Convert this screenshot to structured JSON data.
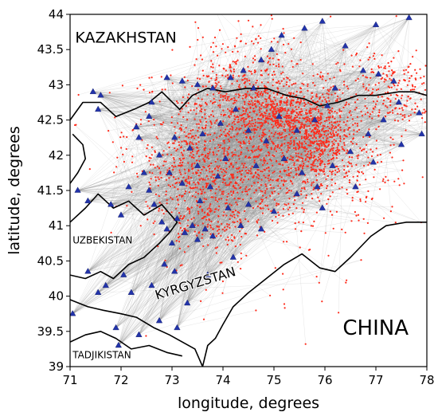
{
  "chart_data": {
    "type": "scatter",
    "xlabel": "longitude, degrees",
    "ylabel": "latitude, degrees",
    "xlim": [
      71,
      78
    ],
    "ylim": [
      39,
      44
    ],
    "x_ticks": [
      "71",
      "72",
      "73",
      "74",
      "75",
      "76",
      "77",
      "78"
    ],
    "y_ticks": [
      "39",
      "39.5",
      "40",
      "40.5",
      "41",
      "41.5",
      "42",
      "42.5",
      "43",
      "43.5",
      "44"
    ],
    "country_labels": {
      "kazakhstan": {
        "text": "KAZAKHSTAN",
        "lon": 71.1,
        "lat": 43.6
      },
      "uzbekistan": {
        "text": "UZBEKISTAN",
        "lon": 71.05,
        "lat": 40.75
      },
      "kyrgyzstan": {
        "text": "KYRGYZSTAN",
        "lon": 72.7,
        "lat": 39.95
      },
      "china": {
        "text": "CHINA",
        "lon": 76.35,
        "lat": 39.45
      },
      "tadjikistan": {
        "text": "TADJIKISTAN",
        "lon": 71.05,
        "lat": 39.12
      }
    },
    "colors": {
      "rays": "#8a8a8a",
      "events": "#ff2a1a",
      "stations": "#2233aa",
      "borders": "#000000",
      "frame": "#000000"
    },
    "stations": [
      [
        71.45,
        42.9
      ],
      [
        71.55,
        42.65
      ],
      [
        71.6,
        42.85
      ],
      [
        71.15,
        41.5
      ],
      [
        71.35,
        41.35
      ],
      [
        71.8,
        41.3
      ],
      [
        72.3,
        42.4
      ],
      [
        72.55,
        42.55
      ],
      [
        72.6,
        42.75
      ],
      [
        72.35,
        42.25
      ],
      [
        72.0,
        41.15
      ],
      [
        72.15,
        41.55
      ],
      [
        72.45,
        41.75
      ],
      [
        72.55,
        41.5
      ],
      [
        72.65,
        41.3
      ],
      [
        72.8,
        41.05
      ],
      [
        72.9,
        40.95
      ],
      [
        73.0,
        40.75
      ],
      [
        73.1,
        41.1
      ],
      [
        73.25,
        40.9
      ],
      [
        73.4,
        41.0
      ],
      [
        73.5,
        40.8
      ],
      [
        73.65,
        40.95
      ],
      [
        73.8,
        40.85
      ],
      [
        73.55,
        41.35
      ],
      [
        73.75,
        41.55
      ],
      [
        73.9,
        41.7
      ],
      [
        74.1,
        41.25
      ],
      [
        74.35,
        41.0
      ],
      [
        74.5,
        41.3
      ],
      [
        72.05,
        40.3
      ],
      [
        72.2,
        40.05
      ],
      [
        72.6,
        40.15
      ],
      [
        72.85,
        40.45
      ],
      [
        73.05,
        40.35
      ],
      [
        71.7,
        40.15
      ],
      [
        71.9,
        39.55
      ],
      [
        71.05,
        39.75
      ],
      [
        71.35,
        40.35
      ],
      [
        71.55,
        40.05
      ],
      [
        72.9,
        43.1
      ],
      [
        73.2,
        43.05
      ],
      [
        73.5,
        43.0
      ],
      [
        73.8,
        42.95
      ],
      [
        74.15,
        43.1
      ],
      [
        74.4,
        43.2
      ],
      [
        74.6,
        42.95
      ],
      [
        74.75,
        43.35
      ],
      [
        74.95,
        43.5
      ],
      [
        75.15,
        43.7
      ],
      [
        75.6,
        43.8
      ],
      [
        75.95,
        43.9
      ],
      [
        76.4,
        43.55
      ],
      [
        76.75,
        43.2
      ],
      [
        77.05,
        43.15
      ],
      [
        77.35,
        43.05
      ],
      [
        77.65,
        43.95
      ],
      [
        77.0,
        43.85
      ],
      [
        76.2,
        42.95
      ],
      [
        76.05,
        42.7
      ],
      [
        75.8,
        42.5
      ],
      [
        75.45,
        42.35
      ],
      [
        75.1,
        42.55
      ],
      [
        74.85,
        42.2
      ],
      [
        74.5,
        42.35
      ],
      [
        74.25,
        42.65
      ],
      [
        73.95,
        42.45
      ],
      [
        73.6,
        42.3
      ],
      [
        73.35,
        42.1
      ],
      [
        73.05,
        42.25
      ],
      [
        72.75,
        42.0
      ],
      [
        72.95,
        41.75
      ],
      [
        73.2,
        41.6
      ],
      [
        73.5,
        41.85
      ],
      [
        74.05,
        41.95
      ],
      [
        74.65,
        41.85
      ],
      [
        75.2,
        41.95
      ],
      [
        75.55,
        41.75
      ],
      [
        75.85,
        41.55
      ],
      [
        76.15,
        41.85
      ],
      [
        76.5,
        42.05
      ],
      [
        76.85,
        42.3
      ],
      [
        77.15,
        42.5
      ],
      [
        77.45,
        42.75
      ],
      [
        77.85,
        42.6
      ],
      [
        77.9,
        42.3
      ],
      [
        77.5,
        42.15
      ],
      [
        76.95,
        41.9
      ],
      [
        76.6,
        41.55
      ],
      [
        75.95,
        41.25
      ],
      [
        75.45,
        41.45
      ],
      [
        75.0,
        41.2
      ],
      [
        74.75,
        40.95
      ],
      [
        73.3,
        39.9
      ],
      [
        73.7,
        40.3
      ],
      [
        74.2,
        40.55
      ],
      [
        71.95,
        39.3
      ],
      [
        72.35,
        39.45
      ],
      [
        72.75,
        39.65
      ],
      [
        73.1,
        39.55
      ]
    ],
    "event_clusters": [
      {
        "lon": 74.3,
        "lat": 42.3,
        "sx": 1.1,
        "sy": 0.55,
        "n": 700
      },
      {
        "lon": 75.2,
        "lat": 42.55,
        "sx": 0.55,
        "sy": 0.2,
        "n": 500
      },
      {
        "lon": 75.9,
        "lat": 42.15,
        "sx": 0.35,
        "sy": 0.25,
        "n": 350
      },
      {
        "lon": 73.4,
        "lat": 41.8,
        "sx": 0.45,
        "sy": 0.35,
        "n": 260
      },
      {
        "lon": 74.8,
        "lat": 41.7,
        "sx": 0.6,
        "sy": 0.3,
        "n": 260
      },
      {
        "lon": 77.2,
        "lat": 42.9,
        "sx": 0.55,
        "sy": 0.3,
        "n": 260
      },
      {
        "lon": 74.6,
        "lat": 43.15,
        "sx": 0.55,
        "sy": 0.35,
        "n": 220
      },
      {
        "lon": 73.7,
        "lat": 41.1,
        "sx": 0.4,
        "sy": 0.2,
        "n": 140
      },
      {
        "lon": 76.5,
        "lat": 41.6,
        "sx": 0.6,
        "sy": 0.4,
        "n": 140
      },
      {
        "lon": 74.5,
        "lat": 40.5,
        "sx": 1.2,
        "sy": 0.6,
        "n": 70
      }
    ],
    "borders": {
      "kaz_kyr": [
        [
          71.0,
          42.5
        ],
        [
          71.25,
          42.75
        ],
        [
          71.6,
          42.75
        ],
        [
          71.9,
          42.55
        ],
        [
          72.25,
          42.65
        ],
        [
          72.55,
          42.75
        ],
        [
          72.8,
          42.9
        ],
        [
          73.15,
          42.65
        ],
        [
          73.4,
          42.85
        ],
        [
          73.7,
          42.95
        ],
        [
          74.05,
          42.9
        ],
        [
          74.45,
          42.95
        ],
        [
          74.85,
          42.95
        ],
        [
          75.25,
          42.85
        ],
        [
          75.6,
          42.8
        ],
        [
          75.9,
          42.7
        ],
        [
          76.25,
          42.75
        ],
        [
          76.65,
          42.85
        ],
        [
          77.0,
          42.85
        ],
        [
          77.45,
          42.9
        ],
        [
          77.75,
          42.9
        ],
        [
          78.0,
          42.85
        ]
      ],
      "kyr_chi": [
        [
          78.0,
          41.05
        ],
        [
          77.6,
          41.05
        ],
        [
          77.2,
          41.0
        ],
        [
          76.9,
          40.85
        ],
        [
          76.5,
          40.55
        ],
        [
          76.2,
          40.35
        ],
        [
          75.9,
          40.4
        ],
        [
          75.55,
          40.6
        ],
        [
          75.2,
          40.45
        ],
        [
          74.85,
          40.25
        ],
        [
          74.5,
          40.05
        ],
        [
          74.2,
          39.85
        ],
        [
          74.0,
          39.6
        ],
        [
          73.85,
          39.4
        ],
        [
          73.7,
          39.3
        ],
        [
          73.6,
          39.0
        ]
      ],
      "kyr_uzb": [
        [
          71.0,
          40.3
        ],
        [
          71.3,
          40.25
        ],
        [
          71.6,
          40.35
        ],
        [
          71.85,
          40.25
        ],
        [
          72.15,
          40.45
        ],
        [
          72.45,
          40.55
        ],
        [
          72.75,
          40.75
        ],
        [
          72.95,
          40.9
        ],
        [
          73.1,
          41.05
        ],
        [
          72.8,
          41.3
        ],
        [
          72.45,
          41.15
        ],
        [
          72.15,
          41.35
        ],
        [
          71.85,
          41.25
        ],
        [
          71.55,
          41.45
        ],
        [
          71.3,
          41.25
        ],
        [
          71.0,
          41.05
        ]
      ],
      "kyr_taj": [
        [
          71.0,
          39.95
        ],
        [
          71.35,
          39.85
        ],
        [
          71.65,
          39.8
        ],
        [
          72.0,
          39.75
        ],
        [
          72.3,
          39.7
        ],
        [
          72.65,
          39.55
        ],
        [
          72.95,
          39.45
        ],
        [
          73.2,
          39.35
        ],
        [
          73.45,
          39.25
        ],
        [
          73.6,
          39.0
        ]
      ],
      "taj_lower": [
        [
          71.0,
          39.35
        ],
        [
          71.3,
          39.45
        ],
        [
          71.6,
          39.5
        ],
        [
          71.9,
          39.4
        ],
        [
          72.2,
          39.25
        ],
        [
          72.55,
          39.3
        ],
        [
          72.9,
          39.2
        ],
        [
          73.2,
          39.15
        ]
      ],
      "uzb_kaz": [
        [
          71.0,
          41.6
        ],
        [
          71.15,
          41.75
        ],
        [
          71.3,
          41.95
        ],
        [
          71.25,
          42.15
        ],
        [
          71.05,
          42.3
        ]
      ]
    }
  }
}
